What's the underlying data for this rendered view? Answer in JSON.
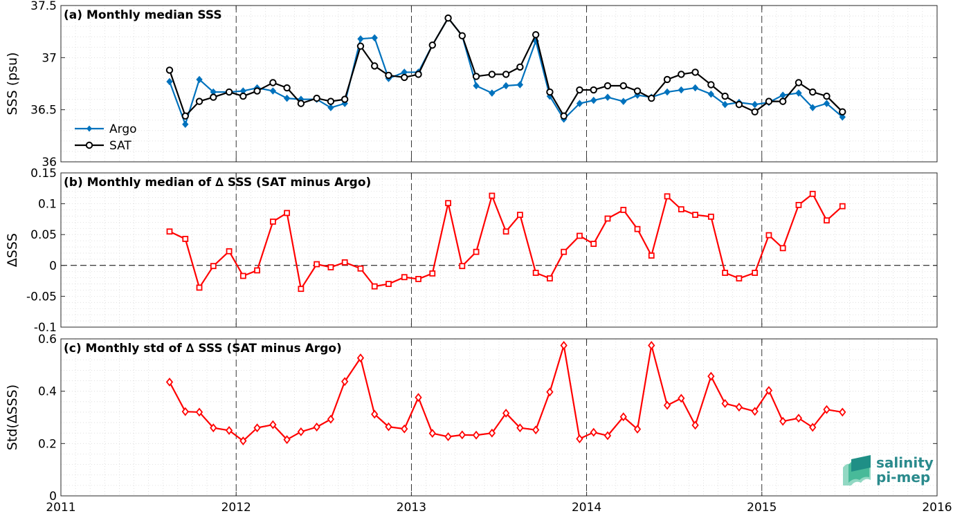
{
  "chart_data": [
    {
      "type": "line",
      "title": "(a) Monthly median SSS",
      "ylabel": "SSS (psu)",
      "ylim": [
        36,
        37.5
      ],
      "yticks": [
        36,
        36.5,
        37,
        37.5
      ],
      "legend_position": "bottom-left",
      "series": [
        {
          "name": "Argo",
          "color": "#0072bd",
          "marker": "filled-diamond",
          "x": [
            2011.62,
            2011.71,
            2011.79,
            2011.87,
            2011.96,
            2012.04,
            2012.12,
            2012.21,
            2012.29,
            2012.37,
            2012.46,
            2012.54,
            2012.62,
            2012.71,
            2012.79,
            2012.87,
            2012.96,
            2013.04,
            2013.12,
            2013.21,
            2013.29,
            2013.37,
            2013.46,
            2013.54,
            2013.62,
            2013.71,
            2013.79,
            2013.87,
            2013.96,
            2014.04,
            2014.12,
            2014.21,
            2014.29,
            2014.37,
            2014.46,
            2014.54,
            2014.62,
            2014.71,
            2014.79,
            2014.87,
            2014.96,
            2015.04,
            2015.12,
            2015.21,
            2015.29,
            2015.37,
            2015.46
          ],
          "y": [
            36.77,
            36.36,
            36.79,
            36.67,
            36.67,
            36.68,
            36.71,
            36.68,
            36.61,
            36.6,
            36.6,
            36.52,
            36.56,
            37.18,
            37.19,
            36.8,
            36.86,
            36.86,
            37.12,
            37.38,
            37.21,
            36.73,
            36.66,
            36.73,
            36.74,
            37.16,
            36.63,
            36.41,
            36.56,
            36.59,
            36.62,
            36.58,
            36.64,
            36.62,
            36.67,
            36.69,
            36.71,
            36.65,
            36.55,
            36.57,
            36.55,
            36.57,
            36.64,
            36.66,
            36.52,
            36.56,
            36.43
          ]
        },
        {
          "name": "SAT",
          "color": "#000000",
          "marker": "open-circle",
          "x": [
            2011.62,
            2011.71,
            2011.79,
            2011.87,
            2011.96,
            2012.04,
            2012.12,
            2012.21,
            2012.29,
            2012.37,
            2012.46,
            2012.54,
            2012.62,
            2012.71,
            2012.79,
            2012.87,
            2012.96,
            2013.04,
            2013.12,
            2013.21,
            2013.29,
            2013.37,
            2013.46,
            2013.54,
            2013.62,
            2013.71,
            2013.79,
            2013.87,
            2013.96,
            2014.04,
            2014.12,
            2014.21,
            2014.29,
            2014.37,
            2014.46,
            2014.54,
            2014.62,
            2014.71,
            2014.79,
            2014.87,
            2014.96,
            2015.04,
            2015.12,
            2015.21,
            2015.29,
            2015.37,
            2015.46
          ],
          "y": [
            36.88,
            36.44,
            36.58,
            36.62,
            36.67,
            36.63,
            36.68,
            36.76,
            36.71,
            36.56,
            36.61,
            36.58,
            36.6,
            37.11,
            36.92,
            36.83,
            36.81,
            36.84,
            37.12,
            37.38,
            37.21,
            36.82,
            36.84,
            36.84,
            36.91,
            37.22,
            36.67,
            36.44,
            36.69,
            36.69,
            36.73,
            36.73,
            36.68,
            36.61,
            36.79,
            36.84,
            36.86,
            36.74,
            36.63,
            36.55,
            36.48,
            36.58,
            36.58,
            36.76,
            36.67,
            36.63,
            36.48
          ]
        }
      ]
    },
    {
      "type": "line",
      "title": "(b) Monthly median of ∆ SSS (SAT minus Argo)",
      "ylabel": "∆SSS",
      "ylim": [
        -0.1,
        0.15
      ],
      "yticks": [
        -0.1,
        -0.05,
        0,
        0.05,
        0.1,
        0.15
      ],
      "ytick_labels": [
        "-0.1",
        "-0.05",
        "0",
        "0.05",
        "0.1",
        "0.15"
      ],
      "zero_line": true,
      "series": [
        {
          "color": "#ff0000",
          "marker": "open-square",
          "x": [
            2011.62,
            2011.71,
            2011.79,
            2011.87,
            2011.96,
            2012.04,
            2012.12,
            2012.21,
            2012.29,
            2012.37,
            2012.46,
            2012.54,
            2012.62,
            2012.71,
            2012.79,
            2012.87,
            2012.96,
            2013.04,
            2013.12,
            2013.21,
            2013.29,
            2013.37,
            2013.46,
            2013.54,
            2013.62,
            2013.71,
            2013.79,
            2013.87,
            2013.96,
            2014.04,
            2014.12,
            2014.21,
            2014.29,
            2014.37,
            2014.46,
            2014.54,
            2014.62,
            2014.71,
            2014.79,
            2014.87,
            2014.96,
            2015.04,
            2015.12,
            2015.21,
            2015.29,
            2015.37,
            2015.46
          ],
          "y": [
            0.055,
            0.043,
            -0.036,
            -0.001,
            0.023,
            -0.017,
            -0.008,
            0.071,
            0.085,
            -0.038,
            0.002,
            -0.003,
            0.005,
            -0.005,
            -0.034,
            -0.03,
            -0.019,
            -0.022,
            -0.013,
            0.101,
            -0.001,
            0.022,
            0.113,
            0.055,
            0.082,
            -0.012,
            -0.021,
            0.022,
            0.048,
            0.035,
            0.076,
            0.09,
            0.059,
            0.016,
            0.112,
            0.091,
            0.082,
            0.079,
            -0.012,
            -0.021,
            -0.012,
            0.049,
            0.028,
            0.098,
            0.116,
            0.073,
            0.096
          ]
        }
      ]
    },
    {
      "type": "line",
      "title": "(c) Monthly std of ∆ SSS (SAT minus Argo)",
      "ylabel": "Std(∆SSS)",
      "ylim": [
        0,
        0.6
      ],
      "yticks": [
        0,
        0.2,
        0.4,
        0.6
      ],
      "ytick_labels": [
        "0",
        "0.2",
        "0.4",
        "0.6"
      ],
      "series": [
        {
          "color": "#ff0000",
          "marker": "open-diamond",
          "x": [
            2011.62,
            2011.71,
            2011.79,
            2011.87,
            2011.96,
            2012.04,
            2012.12,
            2012.21,
            2012.29,
            2012.37,
            2012.46,
            2012.54,
            2012.62,
            2012.71,
            2012.79,
            2012.87,
            2012.96,
            2013.04,
            2013.12,
            2013.21,
            2013.29,
            2013.37,
            2013.46,
            2013.54,
            2013.62,
            2013.71,
            2013.79,
            2013.87,
            2013.96,
            2014.04,
            2014.12,
            2014.21,
            2014.29,
            2014.37,
            2014.46,
            2014.54,
            2014.62,
            2014.71,
            2014.79,
            2014.87,
            2014.96,
            2015.04,
            2015.12,
            2015.21,
            2015.29,
            2015.37,
            2015.46
          ],
          "y": [
            0.435,
            0.322,
            0.32,
            0.26,
            0.25,
            0.21,
            0.26,
            0.272,
            0.215,
            0.245,
            0.263,
            0.293,
            0.437,
            0.527,
            0.312,
            0.264,
            0.256,
            0.376,
            0.239,
            0.226,
            0.233,
            0.232,
            0.24,
            0.316,
            0.26,
            0.252,
            0.397,
            0.575,
            0.218,
            0.243,
            0.23,
            0.302,
            0.255,
            0.575,
            0.346,
            0.373,
            0.27,
            0.457,
            0.353,
            0.339,
            0.323,
            0.403,
            0.285,
            0.297,
            0.262,
            0.33,
            0.32
          ]
        }
      ]
    }
  ],
  "x_axis": {
    "xlim": [
      2011,
      2016
    ],
    "xticks": [
      2011,
      2012,
      2013,
      2014,
      2015,
      2016
    ],
    "xtick_labels": [
      "2011",
      "2012",
      "2013",
      "2014",
      "2015",
      "2016"
    ],
    "year_dividers": [
      2012,
      2013,
      2014,
      2015
    ]
  },
  "grid": "minor-dotted",
  "logo": {
    "line1": "salinity",
    "line2": "pi-mep",
    "color": "#2a8a8c"
  }
}
